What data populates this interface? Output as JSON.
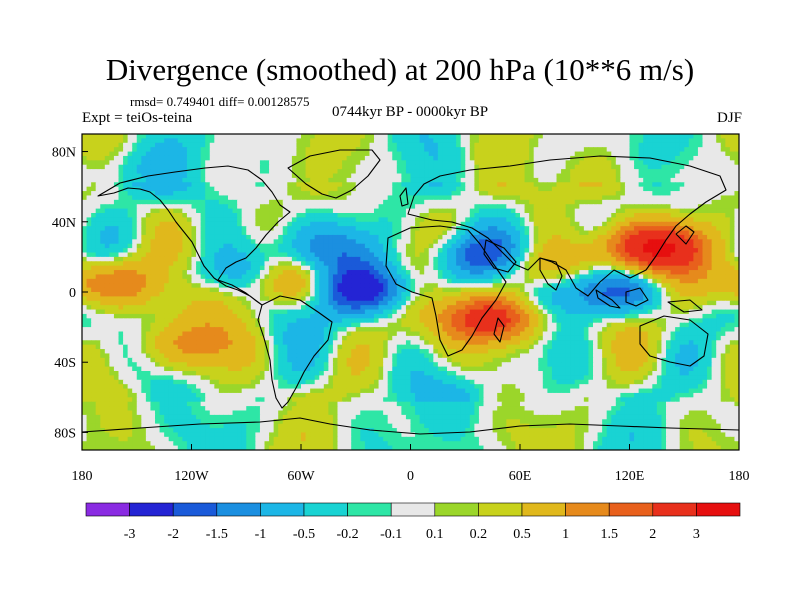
{
  "title": "Divergence (smoothed) at 200 hPa (10**6 m/s)",
  "stats": "rmsd= 0.749401 diff= 0.00128575",
  "experiment": "Expt = teiOs-teina",
  "period": "0744kyr BP - 0000kyr BP",
  "season": "DJF",
  "x_ticks": [
    "180",
    "120W",
    "60W",
    "0",
    "60E",
    "120E",
    "180"
  ],
  "y_ticks": [
    "80N",
    "40N",
    "0",
    "40S",
    "80S"
  ],
  "colorbar": {
    "labels": [
      "-3",
      "-2",
      "-1.5",
      "-1",
      "-0.5",
      "-0.2",
      "-0.1",
      "0.1",
      "0.2",
      "0.5",
      "1",
      "1.5",
      "2",
      "3"
    ],
    "colors": [
      "#8a2be2",
      "#2424d4",
      "#1a5ad9",
      "#1b8fe0",
      "#1cb6e6",
      "#19d3d3",
      "#2ee6a6",
      "#e8e8e8",
      "#9bd62a",
      "#c8d21c",
      "#e0b81c",
      "#e68a1c",
      "#e8601c",
      "#e8301c",
      "#e60f0f"
    ]
  },
  "chart_data": {
    "type": "heatmap",
    "field": "200 hPa divergence difference",
    "units": "10**6 m/s",
    "x_range": [
      -180,
      180
    ],
    "y_range": [
      -90,
      90
    ],
    "features": [
      {
        "name": "tropical-atlantic-minimum",
        "lon": -25,
        "lat": 2,
        "value": -2.5
      },
      {
        "name": "north-africa-minimum-band",
        "lon": 40,
        "lat": 20,
        "value": -2.0
      },
      {
        "name": "east-asia-maximum",
        "lon": 135,
        "lat": 25,
        "value": 3.0
      },
      {
        "name": "southern-africa-maximum",
        "lon": 45,
        "lat": -15,
        "value": 2.5
      },
      {
        "name": "indian-ocean-maximum",
        "lon": 65,
        "lat": 15,
        "value": 1.5
      },
      {
        "name": "maritime-continent-minimum",
        "lon": 110,
        "lat": 0,
        "value": -2.0
      },
      {
        "name": "central-pacific-maximum",
        "lon": -170,
        "lat": 5,
        "value": 2.0
      },
      {
        "name": "equatorial-atlantic-maximum",
        "lon": -65,
        "lat": 5,
        "value": 1.5
      },
      {
        "name": "north-atlantic-minimum",
        "lon": -45,
        "lat": 25,
        "value": -1.0
      },
      {
        "name": "arctic-minimum",
        "lon": -150,
        "lat": 70,
        "value": -1.0
      },
      {
        "name": "south-pacific-maximum",
        "lon": -120,
        "lat": -30,
        "value": 1.0
      },
      {
        "name": "southern-ocean-minimum",
        "lon": 30,
        "lat": -60,
        "value": -0.5
      },
      {
        "name": "eastern-pacific-minimum",
        "lon": -100,
        "lat": 10,
        "value": -1.0
      },
      {
        "name": "siberia-maximum",
        "lon": 100,
        "lat": 65,
        "value": 0.5
      }
    ]
  }
}
